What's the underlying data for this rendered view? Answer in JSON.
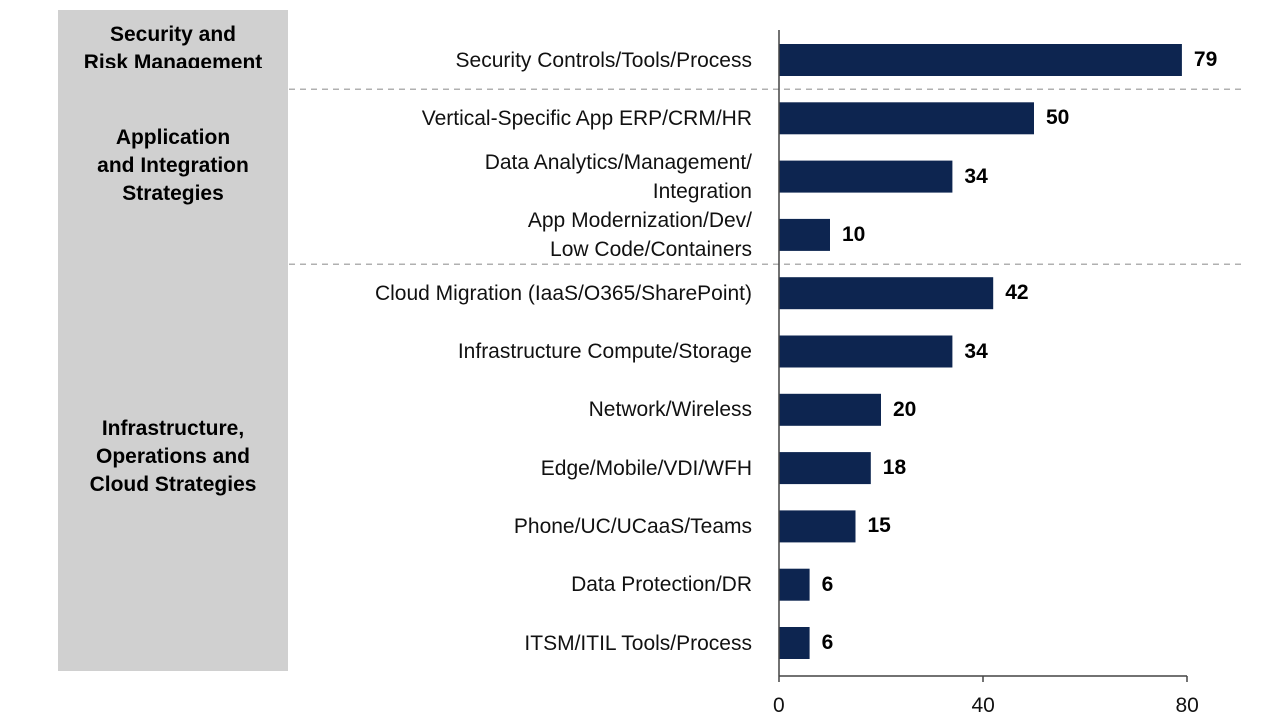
{
  "chart_data": {
    "type": "bar",
    "orientation": "horizontal",
    "categories": [
      "Security Controls/Tools/Process",
      "Vertical-Specific App ERP/CRM/HR",
      "Data Analytics/Management/\nIntegration",
      "App Modernization/Dev/\nLow Code/Containers",
      "Cloud Migration (IaaS/O365/SharePoint)",
      "Infrastructure Compute/Storage",
      "Network/Wireless",
      "Edge/Mobile/VDI/WFH",
      "Phone/UC/UCaaS/Teams",
      "Data Protection/DR",
      "ITSM/ITIL Tools/Process"
    ],
    "values": [
      79,
      50,
      34,
      10,
      42,
      34,
      20,
      18,
      15,
      6,
      6
    ],
    "value_labels": [
      "79",
      "50",
      "34",
      "10",
      "42",
      "34",
      "20",
      "18",
      "15",
      "6",
      "6"
    ],
    "groups": [
      {
        "label": "Security and\nRisk Management",
        "members": [
          0
        ]
      },
      {
        "label": "Application\nand Integration\nStrategies",
        "members": [
          1,
          2,
          3
        ]
      },
      {
        "label": "Infrastructure,\nOperations and\nCloud Strategies",
        "members": [
          4,
          5,
          6,
          7,
          8,
          9,
          10
        ]
      }
    ],
    "xlim": [
      0,
      80
    ],
    "xticks": [
      0,
      40,
      80
    ],
    "xtick_labels": [
      "0",
      "40",
      "80"
    ],
    "grid": false,
    "group_separators": "dashed",
    "legend": "none"
  },
  "colors": {
    "bar": "#0d2550",
    "group_box": "#d0d0d0",
    "axis": "#444444",
    "separator": "#b0b0b0"
  }
}
